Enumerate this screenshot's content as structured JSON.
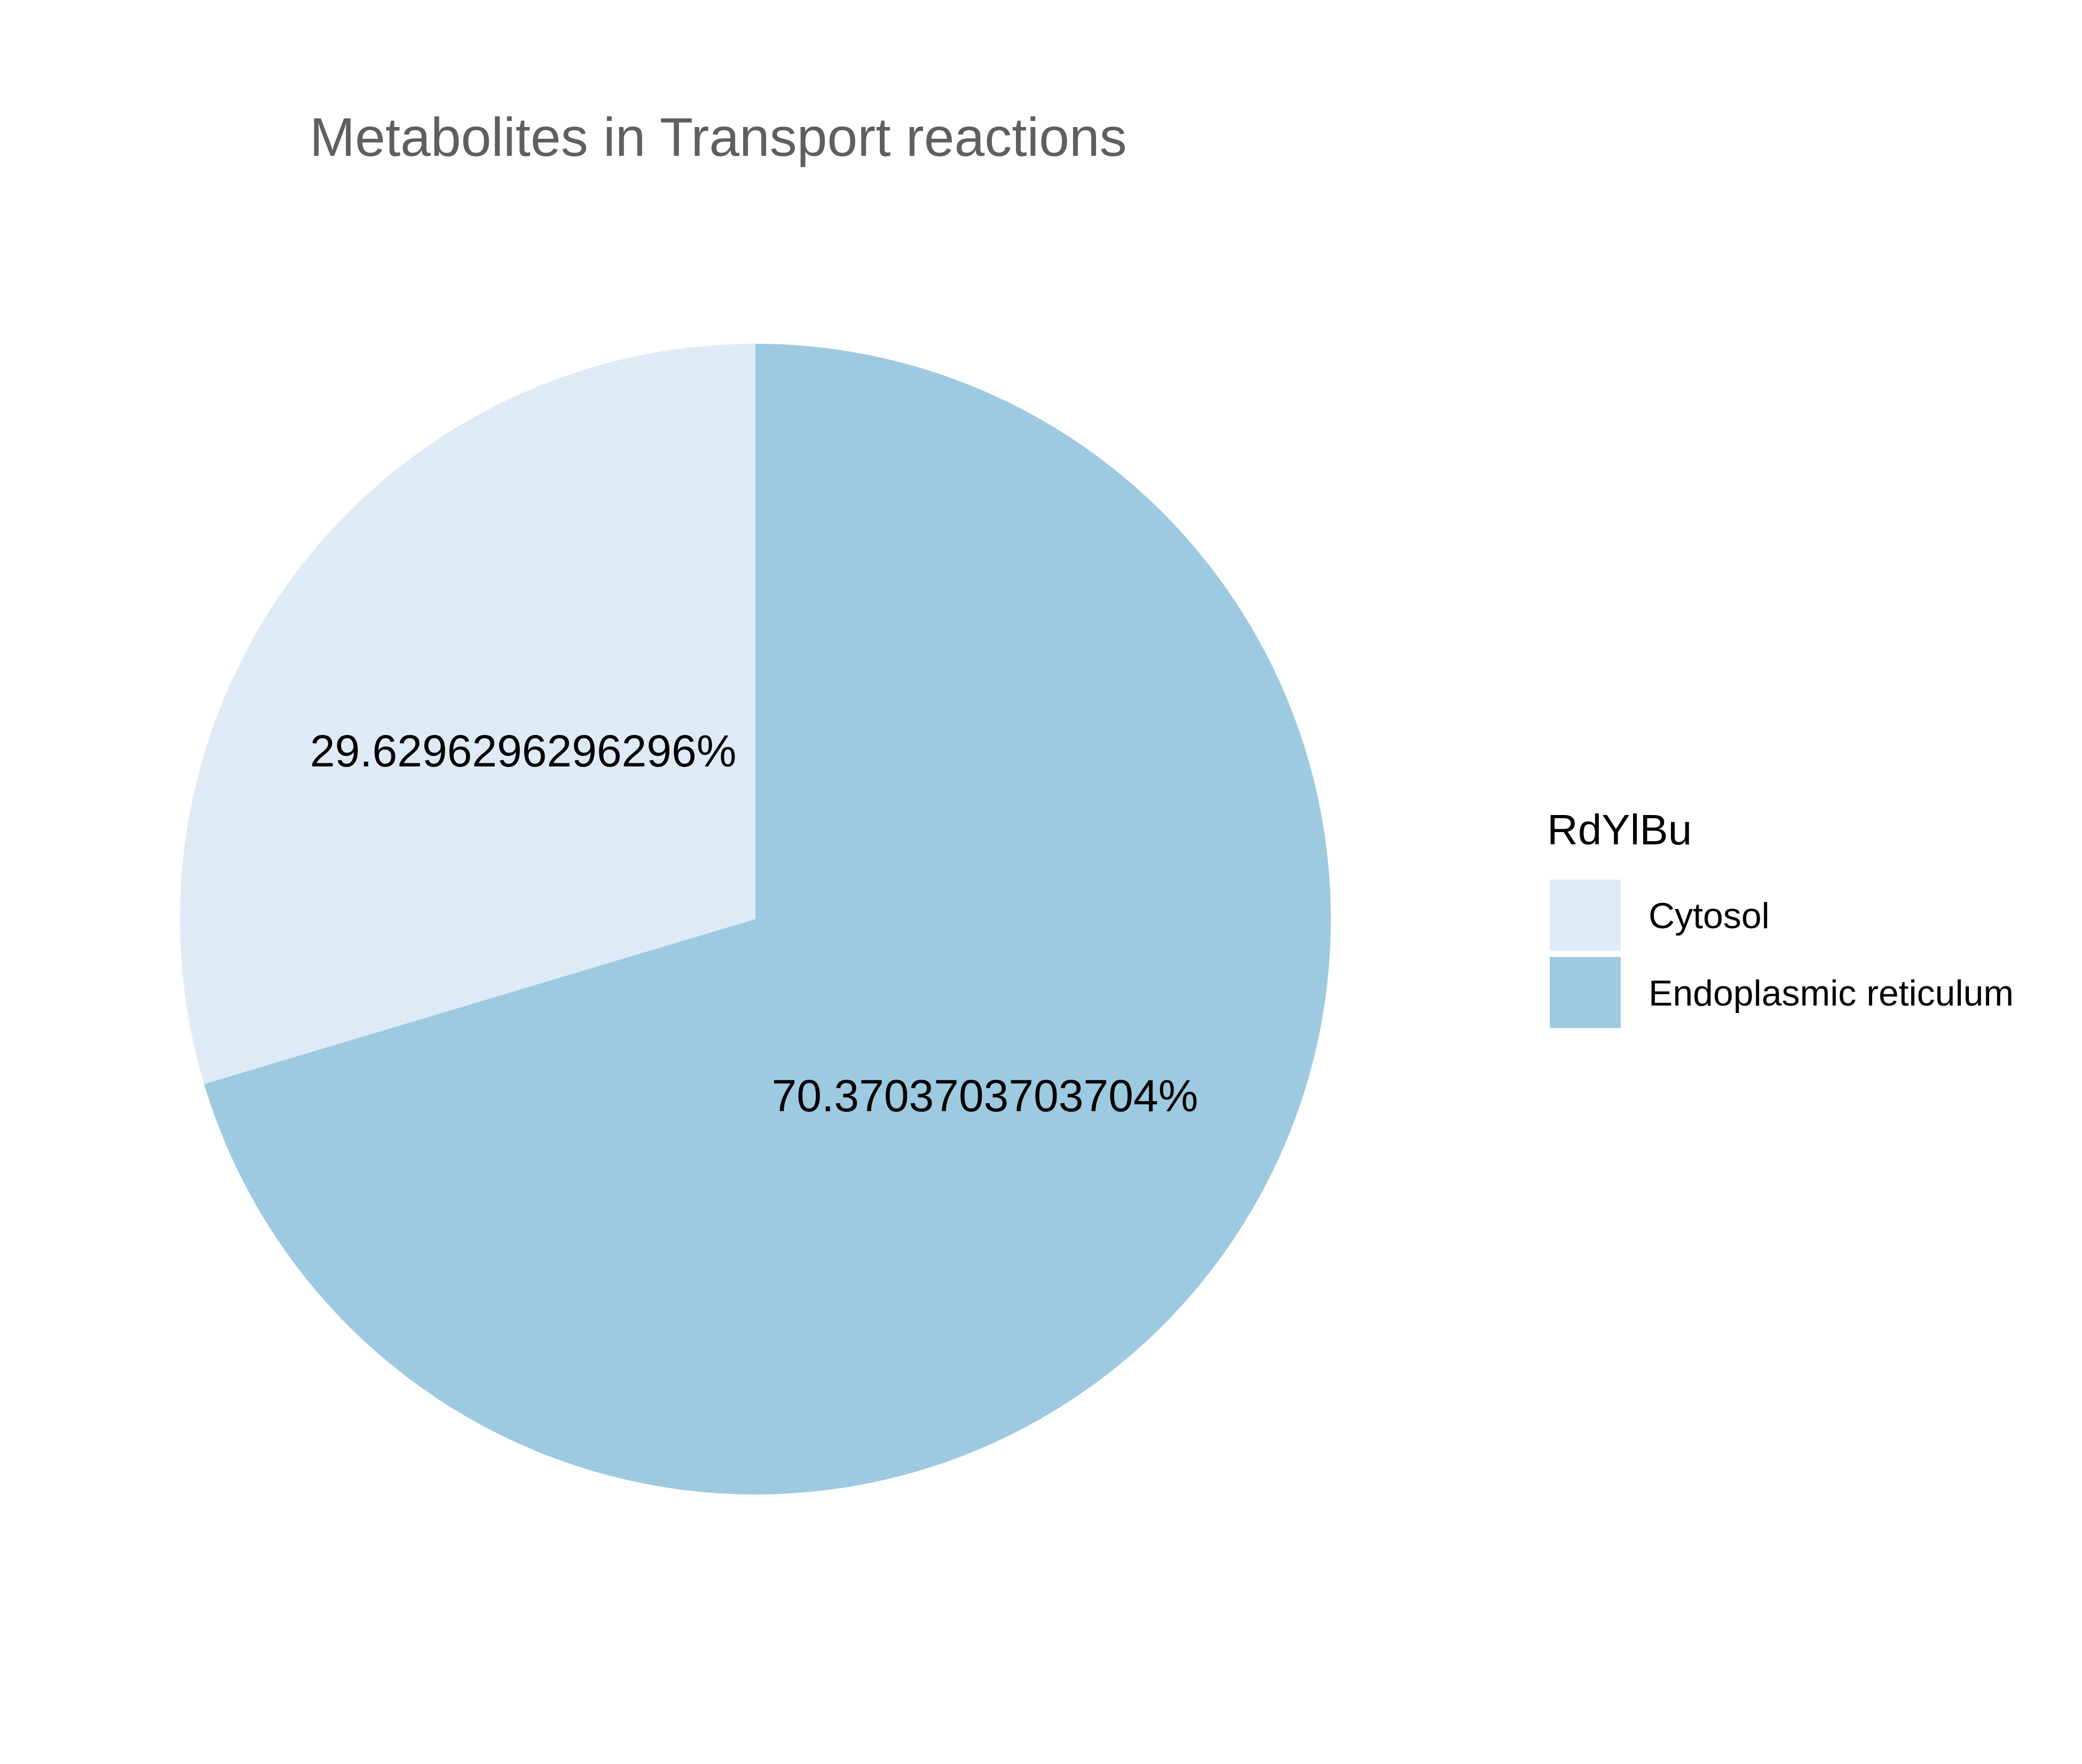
{
  "chart_data": {
    "type": "pie",
    "title": "Metabolites in Transport reactions",
    "legend": {
      "title": "RdYlBu",
      "placement": "right"
    },
    "slices": [
      {
        "label": "Cytosol",
        "value": 29.6296296296296,
        "display_label": "29.6296296296296%",
        "color": "#DEEBF7"
      },
      {
        "label": "Endoplasmic reticulum",
        "value": 70.3703703703704,
        "display_label": "70.3703703703704%",
        "color": "#9ECAE1"
      }
    ],
    "start_angle": "12 o'clock",
    "direction": "counterclockwise for first slice"
  },
  "colors": {
    "title_text": "#5f5f5f",
    "label_text": "#000000",
    "background": "#ffffff"
  }
}
